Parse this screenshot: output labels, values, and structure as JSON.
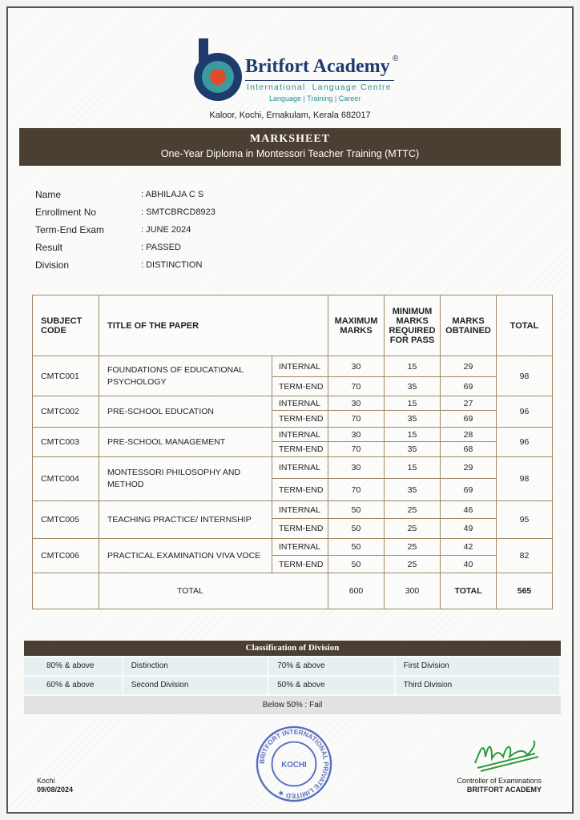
{
  "header": {
    "brand": "Britfort Academy",
    "registered": "®",
    "subtitle": "International  Language Centre",
    "tagline": "Language | Training | Career",
    "address": "Kaloor, Kochi, Ernakulam, Kerala 682017"
  },
  "band": {
    "title": "MARKSHEET",
    "course": "One-Year Diploma in Montessori Teacher Training (MTTC)"
  },
  "student": [
    {
      "label": "Name",
      "value": ": ABHILAJA C S"
    },
    {
      "label": "Enrollment No",
      "value": ": SMTCBRCD8923"
    },
    {
      "label": "Term-End Exam",
      "value": ": JUNE 2024"
    },
    {
      "label": "Result",
      "value": ": PASSED"
    },
    {
      "label": "Division",
      "value": ": DISTINCTION"
    }
  ],
  "table": {
    "headers": [
      "SUBJECT CODE",
      "TITLE OF THE PAPER",
      "MAXIMUM MARKS",
      "MINIMUM MARKS REQUIRED FOR PASS",
      "MARKS OBTAINED",
      "TOTAL"
    ],
    "rows": [
      {
        "code": "CMTC001",
        "title": "FOUNDATIONS OF EDUCATIONAL PSYCHOLOGY",
        "total": "98",
        "parts": [
          {
            "type": "INTERNAL",
            "max": "30",
            "min": "15",
            "obt": "29"
          },
          {
            "type": "TERM-END",
            "max": "70",
            "min": "35",
            "obt": "69"
          }
        ]
      },
      {
        "code": "CMTC002",
        "title": "PRE-SCHOOL EDUCATION",
        "total": "96",
        "parts": [
          {
            "type": "INTERNAL",
            "max": "30",
            "min": "15",
            "obt": "27"
          },
          {
            "type": "TERM-END",
            "max": "70",
            "min": "35",
            "obt": "69"
          }
        ]
      },
      {
        "code": "CMTC003",
        "title": "PRE-SCHOOL MANAGEMENT",
        "total": "96",
        "parts": [
          {
            "type": "INTERNAL",
            "max": "30",
            "min": "15",
            "obt": "28"
          },
          {
            "type": "TERM-END",
            "max": "70",
            "min": "35",
            "obt": "68"
          }
        ]
      },
      {
        "code": "CMTC004",
        "title": "MONTESSORI PHILOSOPHY AND METHOD",
        "total": "98",
        "parts": [
          {
            "type": "INTERNAL",
            "max": "30",
            "min": "15",
            "obt": "29"
          },
          {
            "type": "TERM-END",
            "max": "70",
            "min": "35",
            "obt": "69"
          }
        ]
      },
      {
        "code": "CMTC005",
        "title": "TEACHING PRACTICE/ INTERNSHIP",
        "total": "95",
        "parts": [
          {
            "type": "INTERNAL",
            "max": "50",
            "min": "25",
            "obt": "46"
          },
          {
            "type": "TERM-END",
            "max": "50",
            "min": "25",
            "obt": "49"
          }
        ]
      },
      {
        "code": "CMTC006",
        "title": "PRACTICAL EXAMINATION VIVA VOCE",
        "total": "82",
        "parts": [
          {
            "type": "INTERNAL",
            "max": "50",
            "min": "25",
            "obt": "42"
          },
          {
            "type": "TERM-END",
            "max": "50",
            "min": "25",
            "obt": "40"
          }
        ]
      }
    ],
    "footer": {
      "label": "TOTAL",
      "max": "600",
      "min": "300",
      "obt_label": "TOTAL",
      "grand_total": "565"
    }
  },
  "classification": {
    "title": "Classification of Division",
    "rows": [
      [
        "80% & above",
        "Distinction",
        "70% & above",
        "First Division"
      ],
      [
        "60% & above",
        "Second Division",
        "50% & above",
        "Third Division"
      ]
    ],
    "fail": "Below 50% : Fail"
  },
  "seal": {
    "text": "BRITFORT INTERNATIONAL PRIVATE LIMITED",
    "center": "KOCHI"
  },
  "footer": {
    "place": "Kochi",
    "date": "09/08/2024",
    "signatory": "Controller of Examinations",
    "org": "BRITFORT ACADEMY"
  },
  "colors": {
    "band": "#4b3f33",
    "brand": "#1f3b6b",
    "accent": "#2a8f95",
    "border": "#a08866"
  }
}
